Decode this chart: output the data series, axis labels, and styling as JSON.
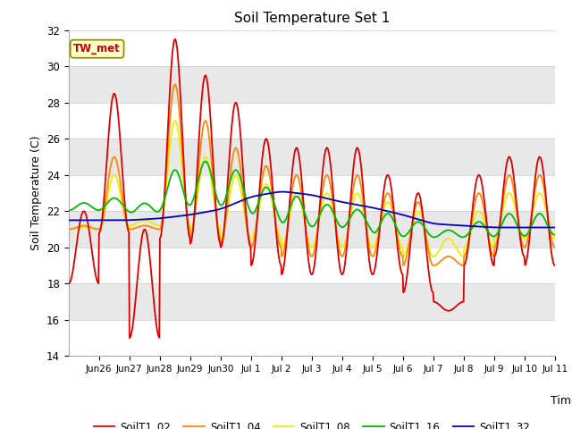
{
  "title": "Soil Temperature Set 1",
  "xlabel": "Time",
  "ylabel": "Soil Temperature (C)",
  "ylim": [
    14,
    32
  ],
  "annotation": "TW_met",
  "legend": [
    "SoilT1_02",
    "SoilT1_04",
    "SoilT1_08",
    "SoilT1_16",
    "SoilT1_32"
  ],
  "colors": [
    "#dd0000",
    "#ff8800",
    "#eeee00",
    "#00bb00",
    "#0000cc"
  ],
  "xtick_labels": [
    "Jun 26",
    "Jun 27",
    "Jun 28",
    "Jun 29",
    "Jun 30",
    "Jul 1",
    "Jul 2",
    "Jul 3",
    "Jul 4",
    "Jul 5",
    "Jul 6",
    "Jul 7",
    "Jul 8",
    "Jul 9",
    "Jul 10",
    "Jul 11"
  ],
  "stripe_color": "#e8e8e8",
  "bg_color": "#ffffff",
  "fig_bg": "#ffffff"
}
